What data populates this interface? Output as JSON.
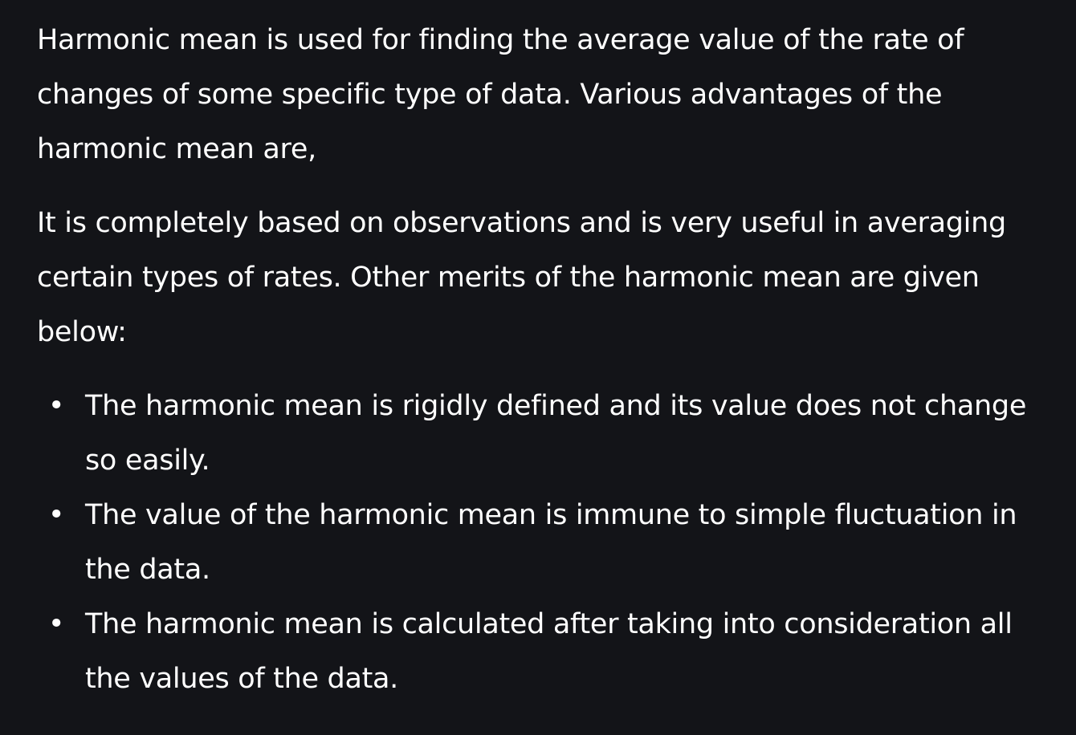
{
  "content": {
    "paragraph1": "Harmonic mean is used for finding the average value of the rate of changes of some specific type of data. Various advantages of the harmonic mean are,",
    "paragraph2": "It is completely based on observations and is very useful in averaging certain types of rates. Other merits of the harmonic mean are given below:",
    "bullet_symbol": "•",
    "merits": [
      "The harmonic mean is rigidly defined and its value does not change so easily.",
      "The value of the harmonic mean is immune to simple fluctuation in the data.",
      "The harmonic mean is calculated after taking into consideration all the values of the data."
    ]
  }
}
